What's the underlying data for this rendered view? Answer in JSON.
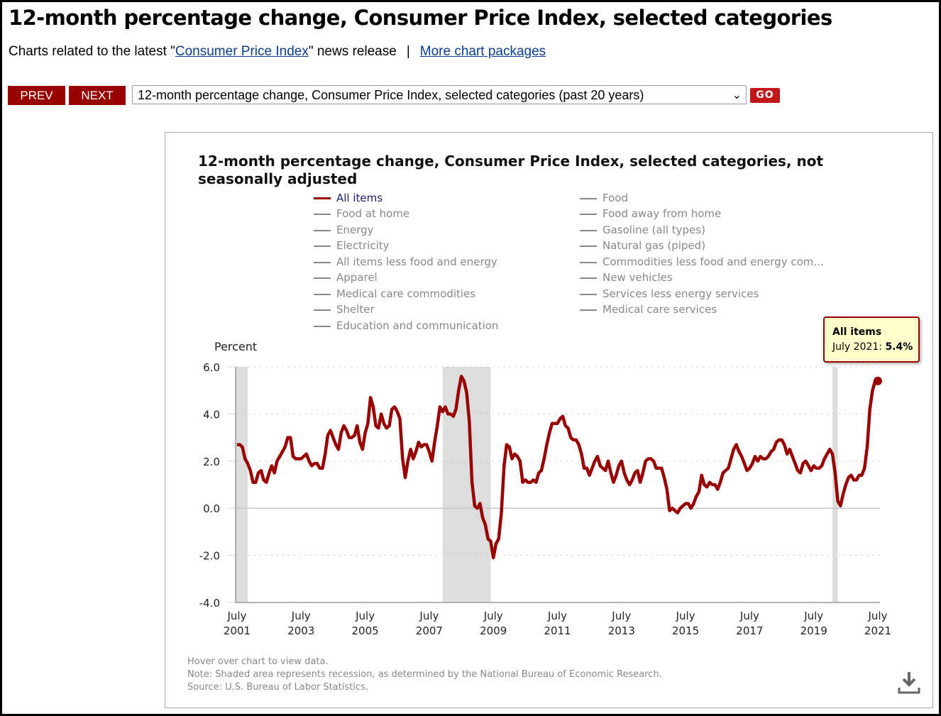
{
  "header": {
    "title": "12-month percentage change, Consumer Price Index, selected categories",
    "subtitle_prefix": "Charts related to the latest \"",
    "subtitle_link": "Consumer Price Index",
    "subtitle_suffix": "\" news release",
    "separator": "|",
    "more_link": "More chart packages"
  },
  "nav": {
    "prev": "PREV",
    "next": "NEXT",
    "selected": "12-month percentage change, Consumer Price Index, selected categories (past 20 years)",
    "go": "GO"
  },
  "legend": {
    "left": [
      "All items",
      "Food at home",
      "Energy",
      "Electricity",
      "All items less food and energy",
      "Apparel",
      "Medical care commodities",
      "Shelter",
      "Education and communication"
    ],
    "right": [
      "Food",
      "Food away from home",
      "Gasoline (all types)",
      "Natural gas (piped)",
      "Commodities less food and energy com...",
      "New vehicles",
      "Services less energy services",
      "Medical care services"
    ]
  },
  "tooltip": {
    "series": "All items",
    "label": "July 2021: ",
    "value": "5.4%"
  },
  "notes": {
    "hover": "Hover over chart to view data.",
    "note": "Note: Shaded area represents recession, as determined by the National Bureau of Economic Research.",
    "source": "Source: U.S. Bureau of Labor Statistics."
  },
  "colors": {
    "series": "#990000",
    "recession": "#dddddd",
    "button": "#990000"
  },
  "icons": {
    "download": "download-icon",
    "dropdown": "chevron-down-icon"
  },
  "chart_data": {
    "type": "line",
    "title": "12-month percentage change, Consumer Price Index, selected categories, not seasonally adjusted",
    "ylabel": "Percent",
    "ylim": [
      -4,
      6
    ],
    "yticks": [
      "6.0",
      "4.0",
      "2.0",
      "0.0",
      "-2.0",
      "-4.0"
    ],
    "xticks": [
      [
        "July",
        "2001"
      ],
      [
        "July",
        "2003"
      ],
      [
        "July",
        "2005"
      ],
      [
        "July",
        "2007"
      ],
      [
        "July",
        "2009"
      ],
      [
        "July",
        "2011"
      ],
      [
        "July",
        "2013"
      ],
      [
        "July",
        "2015"
      ],
      [
        "July",
        "2017"
      ],
      [
        "July",
        "2019"
      ],
      [
        "July",
        "2021"
      ]
    ],
    "x_start": "2001-07",
    "x_end": "2021-07",
    "frequency": "monthly",
    "recessions": [
      [
        "2001-03",
        "2001-11"
      ],
      [
        "2007-12",
        "2009-06"
      ],
      [
        "2020-02",
        "2020-04"
      ]
    ],
    "series": [
      {
        "name": "All items",
        "values": [
          2.7,
          2.7,
          2.6,
          2.1,
          1.9,
          1.6,
          1.1,
          1.1,
          1.5,
          1.6,
          1.2,
          1.1,
          1.5,
          1.8,
          1.5,
          2.0,
          2.2,
          2.4,
          2.6,
          3.0,
          3.0,
          2.2,
          2.1,
          2.1,
          2.1,
          2.2,
          2.3,
          2.0,
          1.8,
          1.9,
          1.9,
          1.7,
          1.7,
          2.3,
          3.1,
          3.3,
          3.0,
          2.7,
          2.5,
          3.2,
          3.5,
          3.3,
          3.0,
          3.0,
          3.1,
          3.5,
          2.8,
          2.5,
          3.2,
          3.6,
          4.7,
          4.3,
          3.5,
          3.4,
          4.0,
          3.6,
          3.4,
          3.5,
          4.2,
          4.3,
          4.1,
          3.8,
          2.1,
          1.3,
          2.0,
          2.5,
          2.1,
          2.4,
          2.8,
          2.6,
          2.7,
          2.7,
          2.4,
          2.0,
          2.8,
          3.5,
          4.3,
          4.1,
          4.3,
          4.0,
          4.0,
          3.9,
          4.2,
          5.0,
          5.6,
          5.4,
          4.9,
          3.7,
          1.1,
          0.1,
          0.0,
          0.2,
          -0.4,
          -0.7,
          -1.3,
          -1.4,
          -2.1,
          -1.5,
          -1.3,
          -0.2,
          1.8,
          2.7,
          2.6,
          2.1,
          2.3,
          2.2,
          2.0,
          1.1,
          1.2,
          1.1,
          1.1,
          1.2,
          1.1,
          1.5,
          1.6,
          2.1,
          2.7,
          3.2,
          3.6,
          3.6,
          3.6,
          3.8,
          3.9,
          3.5,
          3.4,
          3.0,
          2.9,
          2.9,
          2.7,
          2.3,
          1.7,
          1.7,
          1.4,
          1.7,
          2.0,
          2.2,
          1.8,
          1.7,
          1.6,
          2.0,
          1.5,
          1.1,
          1.4,
          1.8,
          2.0,
          1.5,
          1.2,
          1.0,
          1.2,
          1.5,
          1.6,
          1.1,
          1.5,
          2.0,
          2.1,
          2.1,
          2.0,
          1.7,
          1.7,
          1.7,
          1.3,
          0.8,
          -0.1,
          0.0,
          -0.1,
          -0.2,
          0.0,
          0.1,
          0.2,
          0.2,
          0.0,
          0.2,
          0.5,
          0.7,
          1.4,
          1.0,
          0.9,
          1.1,
          1.0,
          1.0,
          0.8,
          1.1,
          1.5,
          1.6,
          1.7,
          2.1,
          2.5,
          2.7,
          2.4,
          2.2,
          1.9,
          1.6,
          1.7,
          1.9,
          2.2,
          2.0,
          2.2,
          2.1,
          2.1,
          2.2,
          2.4,
          2.5,
          2.8,
          2.9,
          2.9,
          2.7,
          2.3,
          2.5,
          2.2,
          1.9,
          1.6,
          1.5,
          1.9,
          2.0,
          1.8,
          1.6,
          1.8,
          1.7,
          1.7,
          1.8,
          2.1,
          2.3,
          2.5,
          2.3,
          1.5,
          0.3,
          0.1,
          0.6,
          1.0,
          1.3,
          1.4,
          1.2,
          1.2,
          1.4,
          1.4,
          1.7,
          2.6,
          4.2,
          5.0,
          5.4,
          5.4
        ]
      }
    ],
    "grid": true,
    "legend_position": "top"
  }
}
